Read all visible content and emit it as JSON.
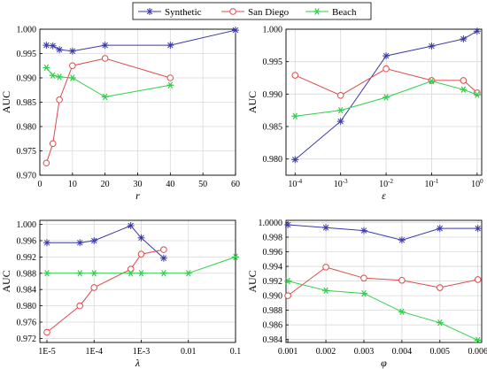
{
  "legend": {
    "placement": "top-center",
    "entries": [
      {
        "name": "Synthetic",
        "color": "#3a3aa8",
        "marker": "asterisk"
      },
      {
        "name": "San Diego",
        "color": "#e04848",
        "marker": "circle"
      },
      {
        "name": "Beach",
        "color": "#2ecf4a",
        "marker": "star"
      }
    ]
  },
  "chart_data": [
    {
      "type": "line",
      "position": "top-left",
      "xlabel": "r",
      "ylabel": "AUC",
      "xscale": "linear",
      "xlim": [
        0,
        60
      ],
      "ylim": [
        0.97,
        1.0
      ],
      "xticks": [
        0,
        10,
        20,
        30,
        40,
        50,
        60
      ],
      "xticklabels": [
        "0",
        "10",
        "20",
        "30",
        "40",
        "50",
        "60"
      ],
      "yticks": [
        0.97,
        0.975,
        0.98,
        0.985,
        0.99,
        0.995,
        1.0
      ],
      "yticklabels": [
        "0.970",
        "0.975",
        "0.980",
        "0.985",
        "0.990",
        "0.995",
        "1.000"
      ],
      "grid": true,
      "series": [
        {
          "name": "Synthetic",
          "x": [
            2,
            4,
            6,
            10,
            20,
            40,
            60
          ],
          "y": [
            0.9967,
            0.9966,
            0.9958,
            0.9955,
            0.9967,
            0.9967,
            0.9998
          ]
        },
        {
          "name": "San Diego",
          "x": [
            2,
            4,
            6,
            10,
            20,
            40
          ],
          "y": [
            0.9725,
            0.9765,
            0.9855,
            0.9925,
            0.994,
            0.99
          ]
        },
        {
          "name": "Beach",
          "x": [
            2,
            4,
            6,
            10,
            20,
            40
          ],
          "y": [
            0.9921,
            0.9905,
            0.9902,
            0.99,
            0.9861,
            0.9885
          ]
        }
      ]
    },
    {
      "type": "line",
      "position": "top-right",
      "xlabel": "ε",
      "ylabel": "AUC",
      "xscale": "log",
      "xlim": [
        -4.2,
        0.1
      ],
      "ylim": [
        0.9775,
        1.0
      ],
      "xticks": [
        -4,
        -3,
        -2,
        -1,
        0
      ],
      "xticklabels": [
        "10^-4",
        "10^-3",
        "10^-2",
        "10^-1",
        "10^0"
      ],
      "yticks": [
        0.98,
        0.985,
        0.99,
        0.995,
        1.0
      ],
      "yticklabels": [
        "0.980",
        "0.985",
        "0.990",
        "0.995",
        "1.000"
      ],
      "grid": true,
      "series": [
        {
          "name": "Synthetic",
          "x": [
            0.0001,
            0.001,
            0.01,
            0.1,
            0.5,
            1
          ],
          "y": [
            0.9799,
            0.9858,
            0.9959,
            0.9974,
            0.9985,
            0.9997
          ]
        },
        {
          "name": "San Diego",
          "x": [
            0.0001,
            0.001,
            0.01,
            0.1,
            0.5,
            1
          ],
          "y": [
            0.9929,
            0.9898,
            0.9939,
            0.9921,
            0.9921,
            0.9902
          ]
        },
        {
          "name": "Beach",
          "x": [
            0.0001,
            0.001,
            0.01,
            0.1,
            0.5,
            1
          ],
          "y": [
            0.9866,
            0.9875,
            0.9895,
            0.992,
            0.9907,
            0.9899
          ]
        }
      ]
    },
    {
      "type": "line",
      "position": "bottom-left",
      "xlabel": "λ",
      "ylabel": "AUC",
      "xscale": "log",
      "xlim": [
        -5.15,
        -1.0
      ],
      "ylim": [
        0.971,
        1.001
      ],
      "xticks": [
        -5,
        -4,
        -3,
        -2,
        -1
      ],
      "xticklabels": [
        "1E-5",
        "1E-4",
        "1E-3",
        "0.01",
        "0.1"
      ],
      "yticks": [
        0.972,
        0.976,
        0.98,
        0.984,
        0.988,
        0.992,
        0.996,
        1.0
      ],
      "yticklabels": [
        "0.972",
        "0.976",
        "0.980",
        "0.984",
        "0.988",
        "0.992",
        "0.996",
        "1.000"
      ],
      "grid": true,
      "series": [
        {
          "name": "Synthetic",
          "x": [
            1e-05,
            5e-05,
            0.0001,
            0.0006,
            0.001,
            0.003
          ],
          "y": [
            0.9955,
            0.9955,
            0.996,
            0.9997,
            0.9967,
            0.9917
          ]
        },
        {
          "name": "San Diego",
          "x": [
            1e-05,
            5e-05,
            0.0001,
            0.0006,
            0.001,
            0.003
          ],
          "y": [
            0.9735,
            0.98,
            0.9845,
            0.989,
            0.9927,
            0.9938
          ]
        },
        {
          "name": "Beach",
          "x": [
            1e-05,
            5e-05,
            0.0001,
            0.0006,
            0.001,
            0.003,
            0.01,
            0.1
          ],
          "y": [
            0.988,
            0.988,
            0.988,
            0.988,
            0.988,
            0.988,
            0.988,
            0.992
          ]
        }
      ]
    },
    {
      "type": "line",
      "position": "bottom-right",
      "xlabel": "φ",
      "ylabel": "AUC",
      "xscale": "linear",
      "xlim": [
        0.00095,
        0.0061
      ],
      "ylim": [
        0.9836,
        1.0003
      ],
      "xticks": [
        0.001,
        0.002,
        0.003,
        0.004,
        0.005,
        0.006
      ],
      "xticklabels": [
        "0.001",
        "0.002",
        "0.003",
        "0.004",
        "0.005",
        "0.006"
      ],
      "yticks": [
        0.984,
        0.986,
        0.988,
        0.99,
        0.992,
        0.994,
        0.996,
        0.998,
        1.0
      ],
      "yticklabels": [
        "0.984",
        "0.986",
        "0.988",
        "0.990",
        "0.992",
        "0.994",
        "0.996",
        "0.998",
        "1.0000"
      ],
      "grid": true,
      "series": [
        {
          "name": "Synthetic",
          "x": [
            0.001,
            0.002,
            0.003,
            0.004,
            0.005,
            0.006
          ],
          "y": [
            0.9997,
            0.9993,
            0.9989,
            0.9976,
            0.9992,
            0.9992
          ]
        },
        {
          "name": "San Diego",
          "x": [
            0.001,
            0.002,
            0.003,
            0.004,
            0.005,
            0.006
          ],
          "y": [
            0.99,
            0.9939,
            0.9924,
            0.9921,
            0.9911,
            0.9922
          ]
        },
        {
          "name": "Beach",
          "x": [
            0.001,
            0.002,
            0.003,
            0.004,
            0.005,
            0.006
          ],
          "y": [
            0.992,
            0.9907,
            0.9903,
            0.9878,
            0.9863,
            0.9839
          ]
        }
      ]
    }
  ]
}
